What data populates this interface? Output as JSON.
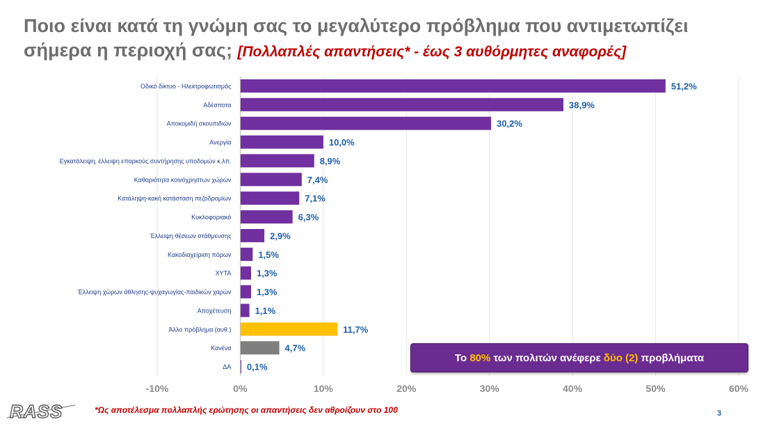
{
  "title": {
    "main": "Ποιο είναι κατά τη γνώμη σας το μεγαλύτερο πρόβλημα που αντιμετωπίζει σήμερα η περιοχή σας;",
    "subtitle": "[Πολλαπλές απαντήσεις* - έως 3 αυθόρμητες αναφορές]"
  },
  "callout": {
    "part1": "Το ",
    "highlight1": "80%",
    "part2": " των πολιτών ανέφερε ",
    "highlight2": "δύο (2)",
    "part3": " προβλήματα"
  },
  "footnote": "*Ως αποτέλεσμα πολλαπλής ερώτησης οι απαντήσεις δεν αθροίζουν στο 100",
  "page_number": "3",
  "logo_text": "RASS",
  "colors": {
    "purple": "#7030a0",
    "orange": "#ffc000",
    "gray": "#7f7f7f",
    "label_blue": "#1f5fa8",
    "category_blue": "#1f3c88",
    "title_gray": "#6e6e6e",
    "red": "#c00000"
  },
  "chart_data": {
    "type": "bar",
    "orientation": "horizontal",
    "categories": [
      "Οδικό δίκτυο - Ηλεκτροφωτισμός",
      "Αδέσποτα",
      "Αποκομιδή σκουπιδιών",
      "Ανεργία",
      "Εγκατάλειψη, έλλειψη επαρκούς συντήρησης υποδομών κ.λπ.",
      "Καθαριότητα κοινόχρηστων χώρων",
      "Κατάληψη-κακή κατάσταση πεζοδρομίων",
      "Κυκλοφοριακό",
      "Έλλειψη θέσεων στάθμευσης",
      "Κακοδιαχείριση πόρων",
      "ΧΥΤΑ",
      "Έλλειψη χώρων άθλησης-ψυχαγωγίας-παιδικών χαρών",
      "Αποχέτευση",
      "Άλλο πρόβλημα (αυθ.)",
      "Κανένα",
      "ΔΑ"
    ],
    "values": [
      51.2,
      38.9,
      30.2,
      10.0,
      8.9,
      7.4,
      7.1,
      6.3,
      2.9,
      1.5,
      1.3,
      1.3,
      1.1,
      11.7,
      4.7,
      0.1
    ],
    "value_labels": [
      "51,2%",
      "38,9%",
      "30,2%",
      "10,0%",
      "8,9%",
      "7,4%",
      "7,1%",
      "6,3%",
      "2,9%",
      "1,5%",
      "1,3%",
      "1,3%",
      "1,1%",
      "11,7%",
      "4,7%",
      "0,1%"
    ],
    "bar_colors": [
      "purple",
      "purple",
      "purple",
      "purple",
      "purple",
      "purple",
      "purple",
      "purple",
      "purple",
      "purple",
      "purple",
      "purple",
      "purple",
      "orange",
      "gray",
      "purple"
    ],
    "xlim": [
      -10,
      60
    ],
    "xticks": [
      -10,
      0,
      10,
      20,
      30,
      40,
      50,
      60
    ],
    "xtick_labels": [
      "-10%",
      "0%",
      "10%",
      "20%",
      "30%",
      "40%",
      "50%",
      "60%"
    ],
    "grid": true
  }
}
